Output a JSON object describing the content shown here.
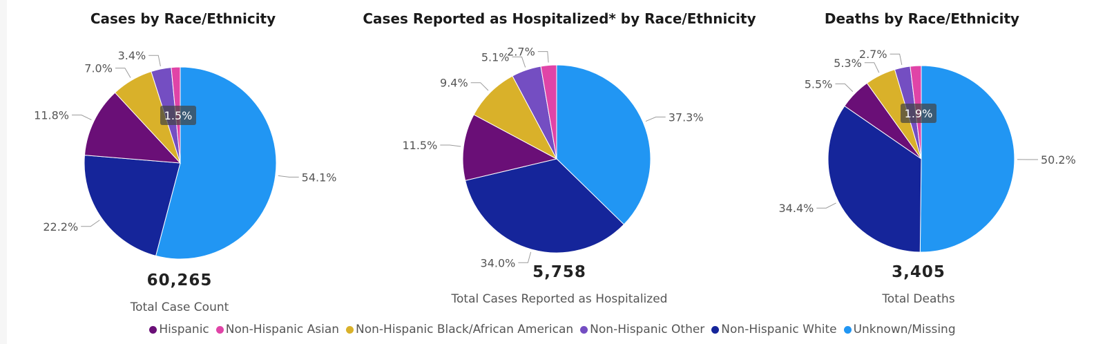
{
  "legend": [
    {
      "label": "Hispanic",
      "color": "#6a0f77"
    },
    {
      "label": "Non-Hispanic Asian",
      "color": "#e044a7"
    },
    {
      "label": "Non-Hispanic Black/African American",
      "color": "#d9b12a"
    },
    {
      "label": "Non-Hispanic Other",
      "color": "#744ec2"
    },
    {
      "label": "Non-Hispanic White",
      "color": "#15259a"
    },
    {
      "label": "Unknown/Missing",
      "color": "#2196f3"
    }
  ],
  "panels": [
    {
      "title": "Cases by Race/Ethnicity",
      "total_value": "60,265",
      "total_label": "Total Case Count"
    },
    {
      "title": "Cases Reported as Hospitalized* by Race/Ethnicity",
      "total_value": "5,758",
      "total_label": "Total Cases Reported as Hospitalized"
    },
    {
      "title": "Deaths by Race/Ethnicity",
      "total_value": "3,405",
      "total_label": "Total Deaths"
    }
  ],
  "chart_data": [
    {
      "type": "pie",
      "title": "Cases by Race/Ethnicity",
      "categories": [
        "Unknown/Missing",
        "Non-Hispanic White",
        "Hispanic",
        "Non-Hispanic Black/African American",
        "Non-Hispanic Other",
        "Non-Hispanic Asian"
      ],
      "values": [
        54.1,
        22.2,
        11.8,
        7.0,
        3.4,
        1.5
      ],
      "labels": [
        "54.1%",
        "22.2%",
        "11.8%",
        "7.0%",
        "3.4%",
        "1.5%"
      ]
    },
    {
      "type": "pie",
      "title": "Cases Reported as Hospitalized* by Race/Ethnicity",
      "categories": [
        "Unknown/Missing",
        "Non-Hispanic White",
        "Hispanic",
        "Non-Hispanic Black/African American",
        "Non-Hispanic Other",
        "Non-Hispanic Asian"
      ],
      "values": [
        37.3,
        34.0,
        11.5,
        9.4,
        5.1,
        2.7
      ],
      "labels": [
        "37.3%",
        "34.0%",
        "11.5%",
        "9.4%",
        "5.1%",
        "2.7%"
      ]
    },
    {
      "type": "pie",
      "title": "Deaths by Race/Ethnicity",
      "categories": [
        "Unknown/Missing",
        "Non-Hispanic White",
        "Hispanic",
        "Non-Hispanic Black/African American",
        "Non-Hispanic Other",
        "Non-Hispanic Asian"
      ],
      "values": [
        50.2,
        34.4,
        5.5,
        5.3,
        2.7,
        1.9
      ],
      "labels": [
        "50.2%",
        "34.4%",
        "5.5%",
        "5.3%",
        "2.7%",
        "1.9%"
      ]
    }
  ]
}
